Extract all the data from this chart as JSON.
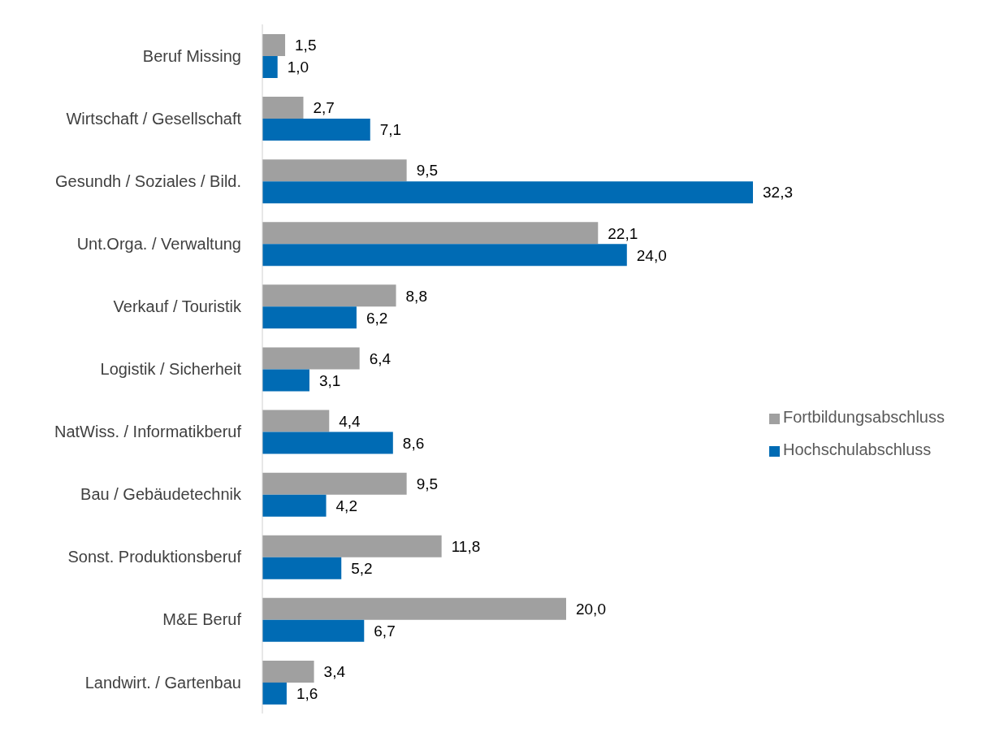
{
  "chart_data": {
    "type": "bar",
    "orientation": "horizontal",
    "categories": [
      "Beruf Missing",
      "Wirtschaft / Gesellschaft",
      "Gesundh / Soziales / Bild.",
      "Unt.Orga. / Verwaltung",
      "Verkauf / Touristik",
      "Logistik / Sicherheit",
      "NatWiss. / Informatikberuf",
      "Bau / Gebäudetechnik",
      "Sonst. Produktionsberuf",
      "M&E Beruf",
      "Landwirt. / Gartenbau"
    ],
    "series": [
      {
        "name": "Fortbildungsabschluss",
        "color": "#a0a0a0",
        "values": [
          1.5,
          2.7,
          9.5,
          22.1,
          8.8,
          6.4,
          4.4,
          9.5,
          11.8,
          20.0,
          3.4
        ],
        "value_labels": [
          "1,5",
          "2,7",
          "9,5",
          "22,1",
          "8,8",
          "6,4",
          "4,4",
          "9,5",
          "11,8",
          "20,0",
          "3,4"
        ]
      },
      {
        "name": "Hochschulabschluss",
        "color": "#006bb4",
        "values": [
          1.0,
          7.1,
          32.3,
          24.0,
          6.2,
          3.1,
          8.6,
          4.2,
          5.2,
          6.7,
          1.6
        ],
        "value_labels": [
          "1,0",
          "7,1",
          "32,3",
          "24,0",
          "6,2",
          "3,1",
          "8,6",
          "4,2",
          "5,2",
          "6,7",
          "1,6"
        ]
      }
    ],
    "legend": "right",
    "grid": false
  }
}
